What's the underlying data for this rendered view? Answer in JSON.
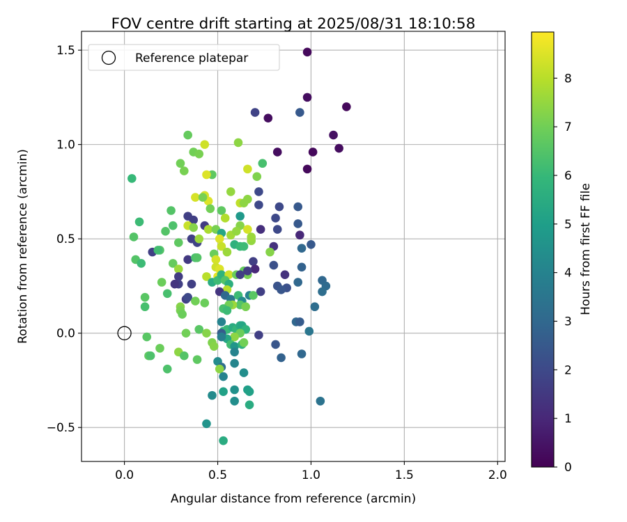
{
  "chart_data": {
    "type": "scatter",
    "title": "FOV centre drift starting at 2025/08/31 18:10:58",
    "xlabel": "Angular distance from reference (arcmin)",
    "ylabel": "Rotation from reference (arcmin)",
    "xlim": [
      -0.23,
      2.04
    ],
    "ylim": [
      -0.68,
      1.6
    ],
    "x_ticks": [
      0.0,
      0.5,
      1.0,
      1.5,
      2.0
    ],
    "x_tick_labels": [
      "0.0",
      "0.5",
      "1.0",
      "1.5",
      "2.0"
    ],
    "y_ticks": [
      -0.5,
      0.0,
      0.5,
      1.0,
      1.5
    ],
    "y_tick_labels": [
      "−0.5",
      "0.0",
      "0.5",
      "1.0",
      "1.5"
    ],
    "grid": true,
    "legend": {
      "placement": "top-left",
      "entries": [
        {
          "label": "Reference platepar",
          "marker": "open-circle"
        }
      ]
    },
    "reference_point": {
      "x": 0.0,
      "y": 0.0
    },
    "colorbar": {
      "label": "Hours from first FF file",
      "colormap": "viridis",
      "range": [
        0,
        8.95
      ],
      "ticks": [
        0,
        1,
        2,
        3,
        4,
        5,
        6,
        7,
        8
      ],
      "tick_labels": [
        "0",
        "1",
        "2",
        "3",
        "4",
        "5",
        "6",
        "7",
        "8"
      ]
    },
    "series": [
      {
        "points": [
          [
            0.98,
            1.49,
            0.2
          ],
          [
            0.98,
            1.25,
            0.3
          ],
          [
            1.19,
            1.2,
            0.2
          ],
          [
            0.7,
            1.17,
            1.8
          ],
          [
            0.77,
            1.14,
            0.3
          ],
          [
            0.94,
            1.17,
            2.5
          ],
          [
            1.12,
            1.05,
            0.4
          ],
          [
            1.15,
            0.98,
            0.3
          ],
          [
            1.01,
            0.96,
            0.2
          ],
          [
            0.82,
            0.96,
            0.3
          ],
          [
            0.98,
            0.87,
            0.2
          ],
          [
            0.72,
            0.75,
            2.0
          ],
          [
            0.72,
            0.68,
            2.0
          ],
          [
            0.83,
            0.67,
            2.0
          ],
          [
            0.93,
            0.67,
            2.5
          ],
          [
            0.81,
            0.61,
            2.0
          ],
          [
            0.93,
            0.58,
            2.5
          ],
          [
            0.82,
            0.55,
            2.0
          ],
          [
            0.73,
            0.55,
            1.2
          ],
          [
            0.94,
            0.52,
            1.0
          ],
          [
            1.0,
            0.47,
            2.5
          ],
          [
            0.95,
            0.45,
            3.0
          ],
          [
            0.8,
            0.46,
            1.3
          ],
          [
            0.78,
            0.43,
            7.3
          ],
          [
            0.95,
            0.35,
            2.8
          ],
          [
            0.8,
            0.36,
            2.2
          ],
          [
            0.86,
            0.31,
            1.3
          ],
          [
            0.69,
            0.38,
            1.7
          ],
          [
            0.7,
            0.34,
            1.0
          ],
          [
            0.93,
            0.27,
            3.0
          ],
          [
            1.06,
            0.28,
            3.0
          ],
          [
            1.08,
            0.25,
            3.1
          ],
          [
            1.06,
            0.22,
            3.2
          ],
          [
            0.87,
            0.24,
            2.2
          ],
          [
            0.82,
            0.25,
            2.3
          ],
          [
            0.84,
            0.23,
            2.4
          ],
          [
            0.73,
            0.22,
            1.7
          ],
          [
            1.02,
            0.14,
            3.2
          ],
          [
            0.92,
            0.06,
            3.0
          ],
          [
            0.94,
            0.06,
            2.6
          ],
          [
            0.99,
            0.01,
            3.5
          ],
          [
            0.72,
            -0.01,
            1.7
          ],
          [
            0.81,
            -0.06,
            2.4
          ],
          [
            0.95,
            -0.11,
            3.0
          ],
          [
            0.84,
            -0.13,
            2.8
          ],
          [
            1.05,
            -0.36,
            3.4
          ],
          [
            0.34,
            1.05,
            6.8
          ],
          [
            0.43,
            1.0,
            8.3
          ],
          [
            0.61,
            1.01,
            7.4
          ],
          [
            0.37,
            0.96,
            7.0
          ],
          [
            0.4,
            0.95,
            7.1
          ],
          [
            0.3,
            0.9,
            7.0
          ],
          [
            0.32,
            0.86,
            7.1
          ],
          [
            0.47,
            0.84,
            6.7
          ],
          [
            0.66,
            0.87,
            8.3
          ],
          [
            0.74,
            0.9,
            6.3
          ],
          [
            0.71,
            0.83,
            7.2
          ],
          [
            0.44,
            0.84,
            8.5
          ],
          [
            0.57,
            0.75,
            7.5
          ],
          [
            0.38,
            0.72,
            8.4
          ],
          [
            0.43,
            0.73,
            8.4
          ],
          [
            0.45,
            0.7,
            8.5
          ],
          [
            0.42,
            0.72,
            7.1
          ],
          [
            0.46,
            0.66,
            7.0
          ],
          [
            0.52,
            0.65,
            6.7
          ],
          [
            0.62,
            0.69,
            8.1
          ],
          [
            0.64,
            0.69,
            7.4
          ],
          [
            0.66,
            0.71,
            7.4
          ],
          [
            0.62,
            0.62,
            4.8
          ],
          [
            0.54,
            0.61,
            7.9
          ],
          [
            0.25,
            0.65,
            6.5
          ],
          [
            0.26,
            0.57,
            6.4
          ],
          [
            0.34,
            0.62,
            1.7
          ],
          [
            0.37,
            0.6,
            1.7
          ],
          [
            0.34,
            0.57,
            8.2
          ],
          [
            0.37,
            0.56,
            7.3
          ],
          [
            0.43,
            0.57,
            1.6
          ],
          [
            0.45,
            0.55,
            7.8
          ],
          [
            0.49,
            0.55,
            7.1
          ],
          [
            0.52,
            0.53,
            5.3
          ],
          [
            0.57,
            0.52,
            7.7
          ],
          [
            0.62,
            0.57,
            7.3
          ],
          [
            0.66,
            0.55,
            8.4
          ],
          [
            0.6,
            0.54,
            7.5
          ],
          [
            0.22,
            0.54,
            6.5
          ],
          [
            0.19,
            0.44,
            6.5
          ],
          [
            0.29,
            0.48,
            6.7
          ],
          [
            0.36,
            0.5,
            1.7
          ],
          [
            0.39,
            0.48,
            1.8
          ],
          [
            0.4,
            0.5,
            7.6
          ],
          [
            0.51,
            0.5,
            8.5
          ],
          [
            0.52,
            0.46,
            8.2
          ],
          [
            0.55,
            0.43,
            7.6
          ],
          [
            0.59,
            0.47,
            5.7
          ],
          [
            0.62,
            0.46,
            6.0
          ],
          [
            0.64,
            0.46,
            6.1
          ],
          [
            0.68,
            0.49,
            7.5
          ],
          [
            0.68,
            0.51,
            7.6
          ],
          [
            0.15,
            0.43,
            1.7
          ],
          [
            0.18,
            0.44,
            6.2
          ],
          [
            0.26,
            0.37,
            6.8
          ],
          [
            0.29,
            0.34,
            7.6
          ],
          [
            0.29,
            0.3,
            1.6
          ],
          [
            0.34,
            0.39,
            1.5
          ],
          [
            0.38,
            0.4,
            6.3
          ],
          [
            0.39,
            0.4,
            6.5
          ],
          [
            0.48,
            0.42,
            6.9
          ],
          [
            0.49,
            0.39,
            8.4
          ],
          [
            0.49,
            0.35,
            8.3
          ],
          [
            0.51,
            0.34,
            8.5
          ],
          [
            0.5,
            0.3,
            8.6
          ],
          [
            0.44,
            0.3,
            8.0
          ],
          [
            0.47,
            0.27,
            5.5
          ],
          [
            0.5,
            0.28,
            6.1
          ],
          [
            0.52,
            0.31,
            5.8
          ],
          [
            0.56,
            0.31,
            8.3
          ],
          [
            0.54,
            0.28,
            6.5
          ],
          [
            0.56,
            0.26,
            5.6
          ],
          [
            0.6,
            0.31,
            6.9
          ],
          [
            0.64,
            0.33,
            6.8
          ],
          [
            0.66,
            0.31,
            7.1
          ],
          [
            0.62,
            0.31,
            1.7
          ],
          [
            0.66,
            0.33,
            1.6
          ],
          [
            0.55,
            0.23,
            8.0
          ],
          [
            0.51,
            0.22,
            1.4
          ],
          [
            0.29,
            0.26,
            1.7
          ],
          [
            0.27,
            0.26,
            1.4
          ],
          [
            0.2,
            0.27,
            6.9
          ],
          [
            0.23,
            0.21,
            6.3
          ],
          [
            0.36,
            0.26,
            1.7
          ],
          [
            0.33,
            0.18,
            1.7
          ],
          [
            0.34,
            0.19,
            2.0
          ],
          [
            0.38,
            0.17,
            7.0
          ],
          [
            0.43,
            0.16,
            6.9
          ],
          [
            0.54,
            0.2,
            3.0
          ],
          [
            0.57,
            0.18,
            3.5
          ],
          [
            0.61,
            0.2,
            6.1
          ],
          [
            0.63,
            0.17,
            4.3
          ],
          [
            0.62,
            0.15,
            6.5
          ],
          [
            0.67,
            0.2,
            4.0
          ],
          [
            0.69,
            0.2,
            6.6
          ],
          [
            0.65,
            0.14,
            7.1
          ],
          [
            0.58,
            0.15,
            7.6
          ],
          [
            0.56,
            0.15,
            7.0
          ],
          [
            0.53,
            0.13,
            6.3
          ],
          [
            0.55,
            0.12,
            6.1
          ],
          [
            0.3,
            0.14,
            7.3
          ],
          [
            0.3,
            0.12,
            7.1
          ],
          [
            0.31,
            0.1,
            6.9
          ],
          [
            0.11,
            0.19,
            6.6
          ],
          [
            0.11,
            0.14,
            6.3
          ],
          [
            0.06,
            0.39,
            6.5
          ],
          [
            0.05,
            0.51,
            6.5
          ],
          [
            0.08,
            0.59,
            6.1
          ],
          [
            0.04,
            0.82,
            6.0
          ],
          [
            0.09,
            0.37,
            6.1
          ],
          [
            0.33,
            0.0,
            7.0
          ],
          [
            0.4,
            0.02,
            6.6
          ],
          [
            0.44,
            0.0,
            7.3
          ],
          [
            0.52,
            0.06,
            4.0
          ],
          [
            0.53,
            0.01,
            5.8
          ],
          [
            0.55,
            0.02,
            6.0
          ],
          [
            0.58,
            0.03,
            5.5
          ],
          [
            0.6,
            0.02,
            5.9
          ],
          [
            0.62,
            0.04,
            5.5
          ],
          [
            0.63,
            0.04,
            5.3
          ],
          [
            0.65,
            0.02,
            5.8
          ],
          [
            0.62,
            0.0,
            6.9
          ],
          [
            0.59,
            -0.02,
            7.4
          ],
          [
            0.55,
            -0.03,
            5.3
          ],
          [
            0.52,
            0.0,
            2.6
          ],
          [
            0.52,
            -0.02,
            3.8
          ],
          [
            0.47,
            -0.05,
            7.2
          ],
          [
            0.48,
            -0.07,
            7.3
          ],
          [
            0.57,
            -0.06,
            6.2
          ],
          [
            0.59,
            -0.07,
            4.7
          ],
          [
            0.63,
            -0.06,
            5.7
          ],
          [
            0.64,
            -0.05,
            7.0
          ],
          [
            0.59,
            -0.1,
            4.0
          ],
          [
            0.12,
            -0.02,
            6.6
          ],
          [
            0.19,
            -0.08,
            6.9
          ],
          [
            0.13,
            -0.12,
            6.7
          ],
          [
            0.14,
            -0.12,
            6.4
          ],
          [
            0.29,
            -0.1,
            7.4
          ],
          [
            0.32,
            -0.12,
            6.5
          ],
          [
            0.39,
            -0.14,
            6.7
          ],
          [
            0.5,
            -0.15,
            4.3
          ],
          [
            0.52,
            -0.18,
            3.2
          ],
          [
            0.51,
            -0.19,
            7.4
          ],
          [
            0.59,
            -0.16,
            4.1
          ],
          [
            0.53,
            -0.23,
            4.0
          ],
          [
            0.64,
            -0.21,
            4.4
          ],
          [
            0.23,
            -0.19,
            6.4
          ],
          [
            0.59,
            -0.3,
            4.5
          ],
          [
            0.66,
            -0.3,
            5.0
          ],
          [
            0.67,
            -0.31,
            5.1
          ],
          [
            0.59,
            -0.36,
            4.4
          ],
          [
            0.67,
            -0.38,
            5.5
          ],
          [
            0.47,
            -0.33,
            4.3
          ],
          [
            0.53,
            -0.31,
            5.1
          ],
          [
            0.44,
            -0.48,
            4.6
          ],
          [
            0.53,
            -0.57,
            5.5
          ]
        ]
      }
    ]
  }
}
